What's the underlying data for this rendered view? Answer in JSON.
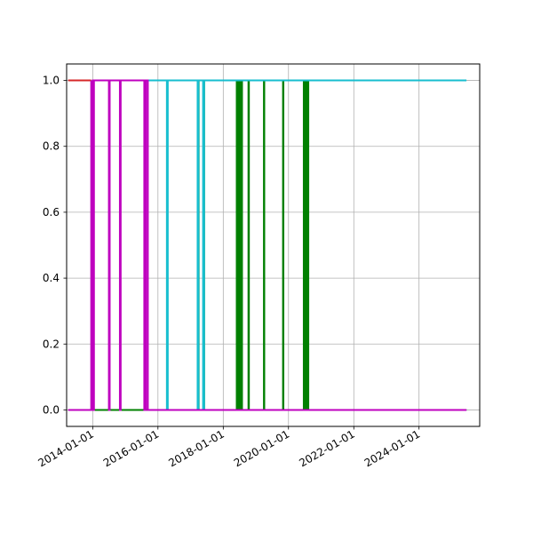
{
  "chart_data": {
    "type": "line",
    "title": "",
    "xlabel": "",
    "ylabel": "",
    "x_axis": {
      "type": "date",
      "range": [
        "2013-03-15",
        "2025-11-10"
      ],
      "ticks": [
        "2014-01-01",
        "2016-01-01",
        "2018-01-01",
        "2020-01-01",
        "2022-01-01",
        "2024-01-01"
      ]
    },
    "y_axis": {
      "range": [
        -0.05,
        1.05
      ],
      "ticks": [
        0.0,
        0.2,
        0.4,
        0.6,
        0.8,
        1.0
      ],
      "tick_labels": [
        "0.0",
        "0.2",
        "0.4",
        "0.6",
        "0.8",
        "1.0"
      ]
    },
    "grid": true,
    "legend": "none",
    "series": [
      {
        "color": "#d62728",
        "points": [
          [
            "2013-04-01",
            1
          ],
          [
            "2013-12-15",
            1
          ]
        ]
      },
      {
        "color": "#bf00bf",
        "points": [
          [
            "2013-04-01",
            0
          ],
          [
            "2013-12-15",
            0
          ]
        ]
      },
      {
        "color": "#1f77b4",
        "points": [
          [
            "2013-12-15",
            0
          ],
          [
            "2025-06-15",
            0
          ]
        ]
      },
      {
        "color": "#008000",
        "points": [
          [
            "2013-12-25",
            0
          ],
          [
            "2017-04-01",
            0
          ],
          [
            "2017-04-01",
            1
          ],
          [
            "2017-06-01",
            1
          ],
          [
            "2017-06-01",
            0
          ],
          [
            "2018-06-01",
            0
          ],
          [
            "2018-06-01",
            1
          ],
          [
            "2018-06-20",
            1
          ],
          [
            "2018-06-20",
            0
          ],
          [
            "2018-07-10",
            0
          ],
          [
            "2018-07-10",
            1
          ],
          [
            "2018-07-30",
            1
          ],
          [
            "2018-07-30",
            0
          ],
          [
            "2018-10-10",
            0
          ],
          [
            "2018-10-10",
            1
          ],
          [
            "2018-10-15",
            1
          ],
          [
            "2018-10-15",
            0
          ],
          [
            "2019-04-01",
            0
          ],
          [
            "2019-04-01",
            1
          ],
          [
            "2019-04-05",
            1
          ],
          [
            "2019-04-05",
            0
          ],
          [
            "2019-11-01",
            0
          ],
          [
            "2019-11-01",
            1
          ],
          [
            "2019-11-05",
            1
          ],
          [
            "2019-11-05",
            0
          ],
          [
            "2020-06-20",
            0
          ],
          [
            "2020-06-20",
            1
          ],
          [
            "2020-07-10",
            1
          ],
          [
            "2020-07-10",
            0
          ],
          [
            "2020-07-25",
            0
          ],
          [
            "2020-07-25",
            1
          ],
          [
            "2020-08-10",
            1
          ],
          [
            "2020-08-10",
            0
          ],
          [
            "2025-06-15",
            0
          ]
        ]
      },
      {
        "color": "#17becf",
        "points": [
          [
            "2015-07-01",
            1
          ],
          [
            "2016-04-10",
            1
          ],
          [
            "2016-04-10",
            0
          ],
          [
            "2016-04-20",
            0
          ],
          [
            "2016-04-20",
            1
          ],
          [
            "2017-03-20",
            1
          ],
          [
            "2017-03-20",
            0
          ],
          [
            "2017-03-30",
            0
          ],
          [
            "2017-03-30",
            1
          ],
          [
            "2017-05-20",
            1
          ],
          [
            "2017-05-20",
            0
          ],
          [
            "2017-06-01",
            0
          ],
          [
            "2017-06-01",
            1
          ],
          [
            "2025-06-15",
            1
          ]
        ]
      },
      {
        "color": "#bf00bf",
        "points": [
          [
            "2013-12-15",
            1
          ],
          [
            "2013-12-15",
            0
          ],
          [
            "2014-01-01",
            0
          ],
          [
            "2014-01-01",
            1
          ],
          [
            "2014-01-10",
            1
          ],
          [
            "2014-01-10",
            0
          ],
          [
            "2014-01-15",
            0
          ],
          [
            "2014-01-15",
            1
          ],
          [
            "2014-07-01",
            1
          ],
          [
            "2014-07-01",
            0
          ],
          [
            "2014-07-10",
            0
          ],
          [
            "2014-07-10",
            1
          ],
          [
            "2014-11-01",
            1
          ],
          [
            "2014-11-01",
            0
          ],
          [
            "2014-11-10",
            0
          ],
          [
            "2014-11-10",
            1
          ],
          [
            "2015-08-01",
            1
          ],
          [
            "2015-08-01",
            0
          ],
          [
            "2015-08-20",
            0
          ],
          [
            "2015-08-20",
            1
          ],
          [
            "2015-09-10",
            1
          ],
          [
            "2015-09-10",
            0
          ],
          [
            "2025-06-15",
            0
          ]
        ]
      }
    ]
  }
}
